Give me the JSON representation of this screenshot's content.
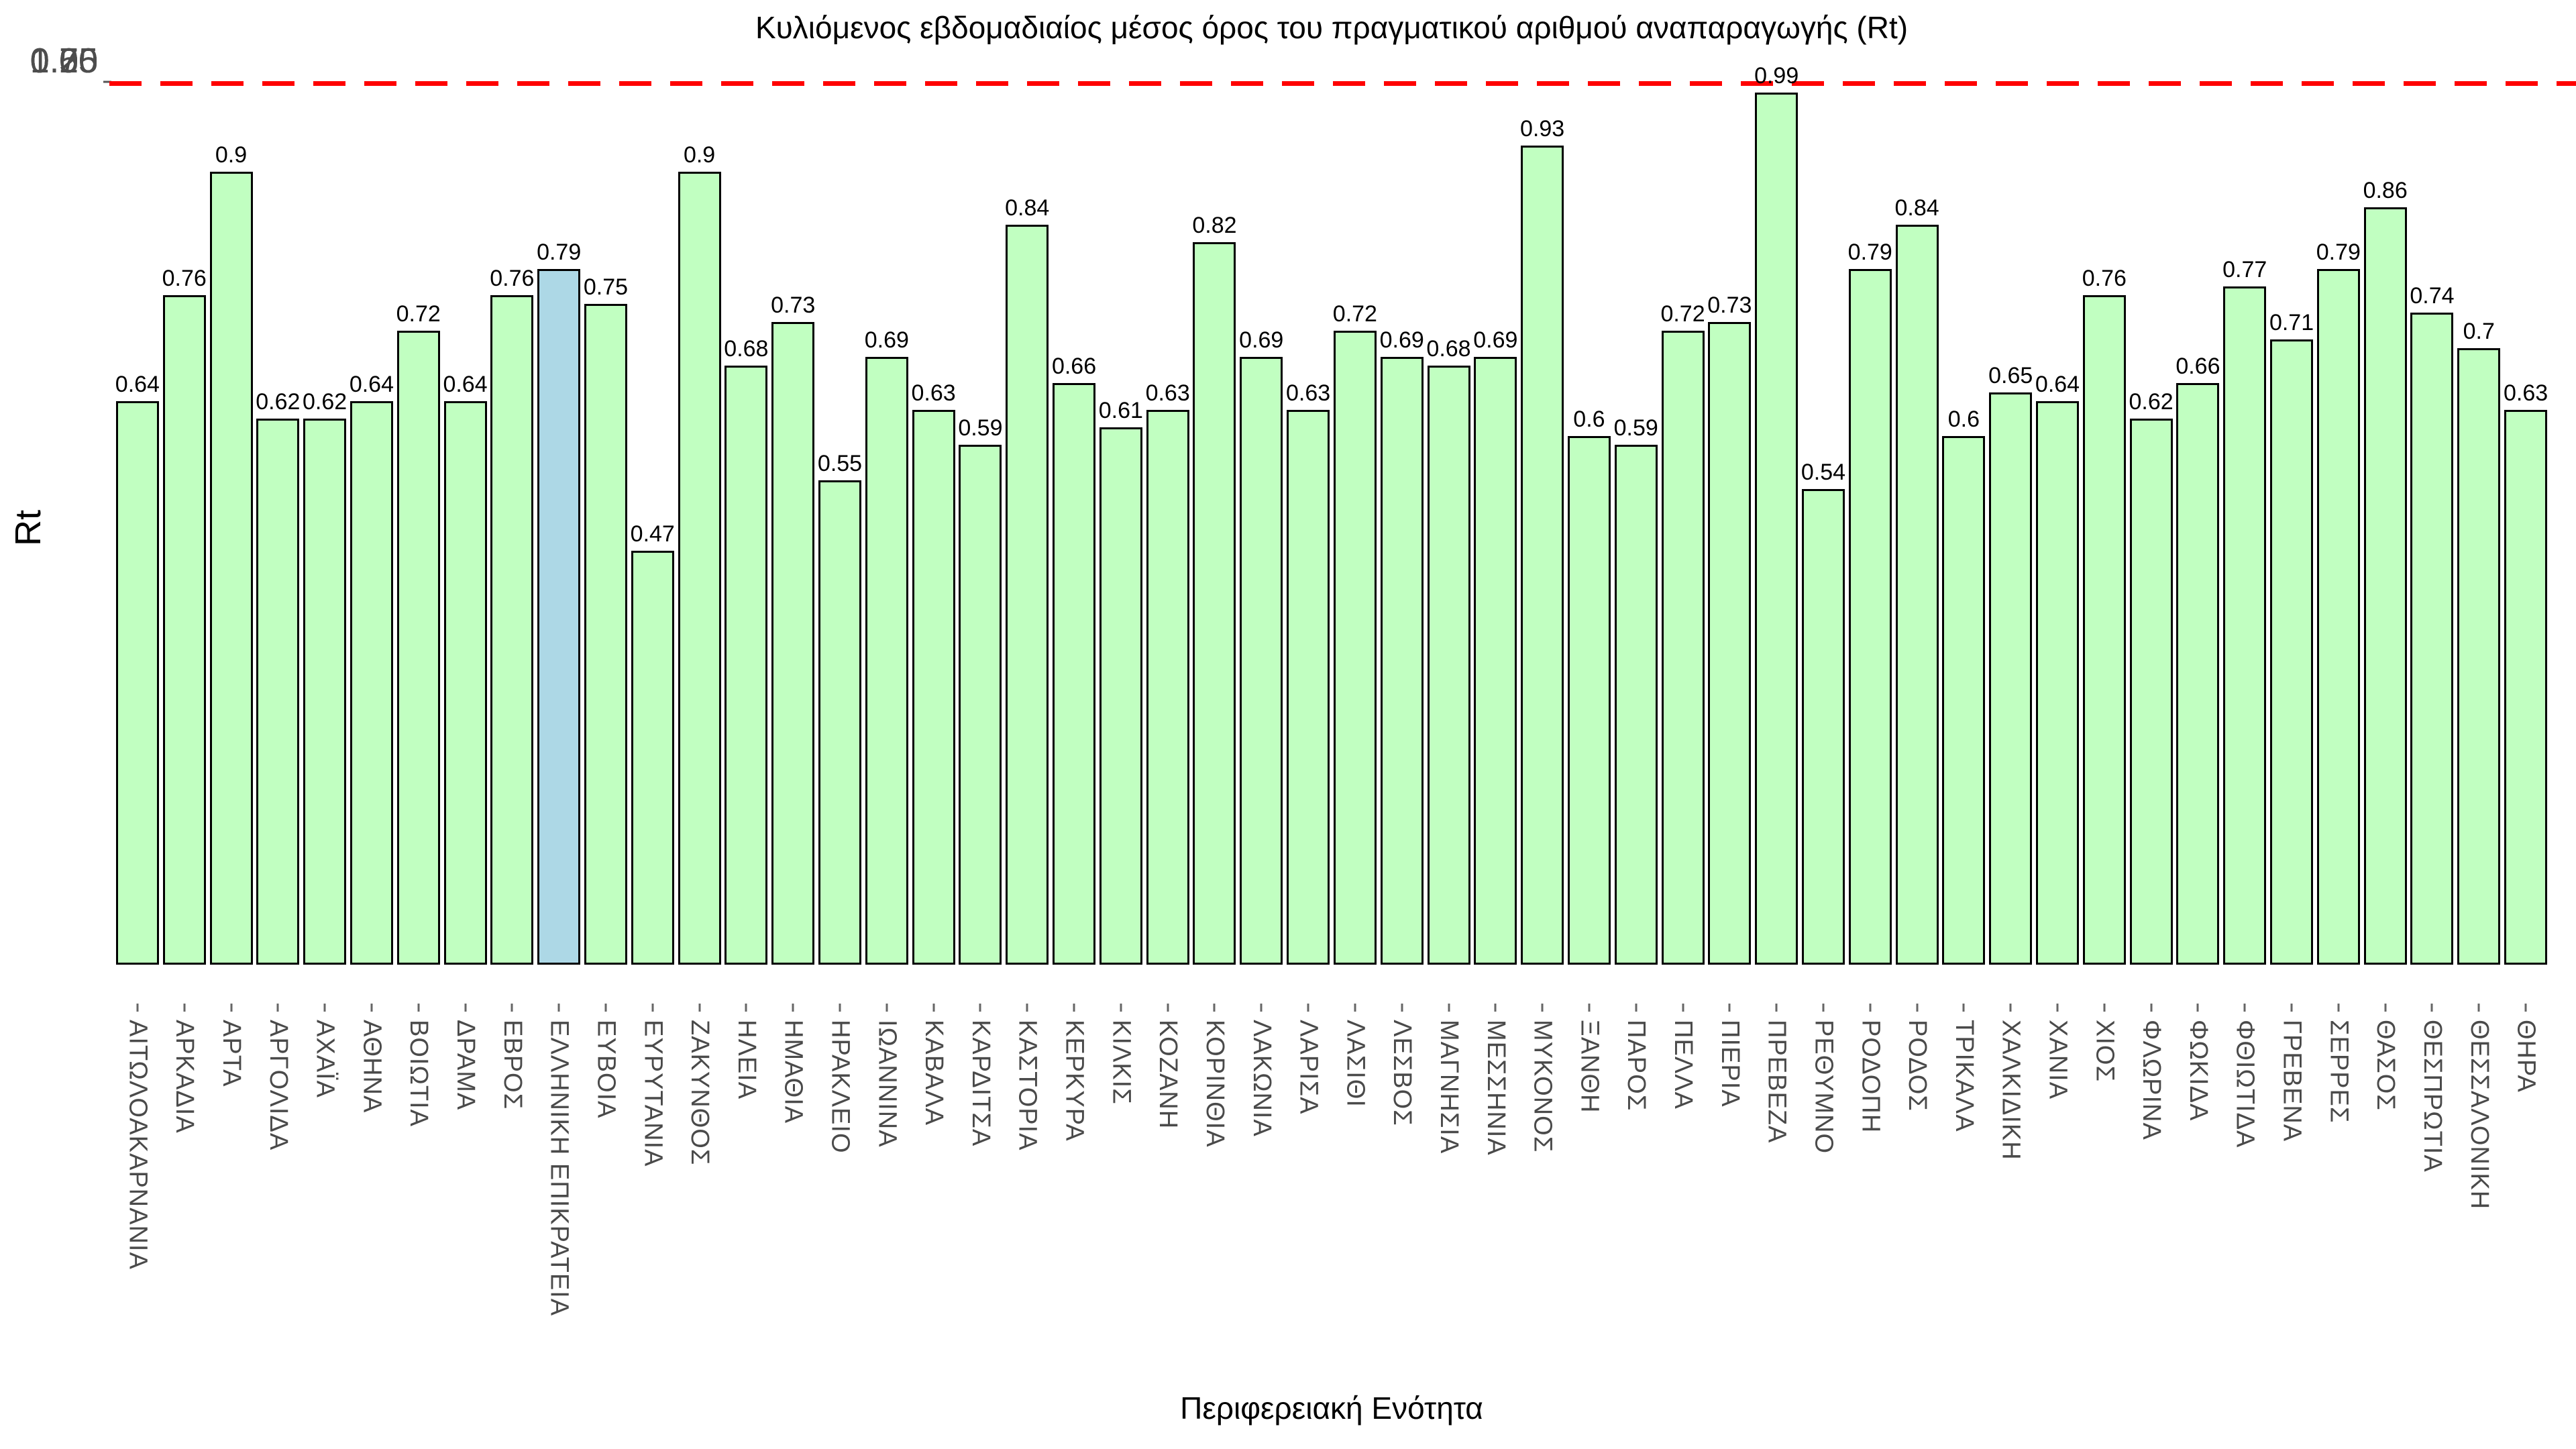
{
  "chart_data": {
    "type": "bar",
    "title": "Κυλιόμενος εβδομαδιαίος μέσος όρος του πραγματικού αριθμού αναπαραγωγής (Rt)",
    "xlabel": "Περιφερειακή Ενότητα",
    "ylabel": "Rt",
    "ylim": [
      0,
      1.05
    ],
    "yticks": [
      "0.00",
      "0.25",
      "0.50",
      "0.75",
      "1.00"
    ],
    "reference_line": 1.0,
    "grid": false,
    "legend": null,
    "colors": {
      "bar_fill": "#c1ffc1",
      "bar_border": "#000000",
      "highlight_fill": "#add8e6",
      "reference_line": "#ff0000",
      "tick_text": "#4a4a4a"
    },
    "highlight_category": "ΕΛΛΗΝΙΚΗ ΕΠΙΚΡΑΤΕΙΑ",
    "highlight_index": 9,
    "categories": [
      "ΑΙΤΩΛΟΑΚΑΡΝΑΝΙΑ",
      "ΑΡΚΑΔΙΑ",
      "ΑΡΤΑ",
      "ΑΡΓΟΛΙΔΑ",
      "ΑΧΑΪΑ",
      "ΑΘΗΝΑ",
      "ΒΟΙΩΤΙΑ",
      "ΔΡΑΜΑ",
      "ΕΒΡΟΣ",
      "ΕΛΛΗΝΙΚΗ ΕΠΙΚΡΑΤΕΙΑ",
      "ΕΥΒΟΙΑ",
      "ΕΥΡΥΤΑΝΙΑ",
      "ΖΑΚΥΝΘΟΣ",
      "ΗΛΕΙΑ",
      "ΗΜΑΘΙΑ",
      "ΗΡΑΚΛΕΙΟ",
      "ΙΩΑΝΝΙΝΑ",
      "ΚΑΒΑΛΑ",
      "ΚΑΡΔΙΤΣΑ",
      "ΚΑΣΤΟΡΙΑ",
      "ΚΕΡΚΥΡΑ",
      "ΚΙΛΚΙΣ",
      "ΚΟΖΑΝΗ",
      "ΚΟΡΙΝΘΙΑ",
      "ΛΑΚΩΝΙΑ",
      "ΛΑΡΙΣΑ",
      "ΛΑΣΙΘΙ",
      "ΛΕΣΒΟΣ",
      "ΜΑΓΝΗΣΙΑ",
      "ΜΕΣΣΗΝΙΑ",
      "ΜΥΚΟΝΟΣ",
      "ΞΑΝΘΗ",
      "ΠΑΡΟΣ",
      "ΠΕΛΛΑ",
      "ΠΙΕΡΙΑ",
      "ΠΡΕΒΕΖΑ",
      "ΡΕΘΥΜΝΟ",
      "ΡΟΔΟΠΗ",
      "ΡΟΔΟΣ",
      "ΤΡΙΚΑΛΑ",
      "ΧΑΛΚΙΔΙΚΗ",
      "ΧΑΝΙΑ",
      "ΧΙΟΣ",
      "ΦΛΩΡΙΝΑ",
      "ΦΩΚΙΔΑ",
      "ΦΘΙΩΤΙΔΑ",
      "ΓΡΕΒΕΝΑ",
      "ΣΕΡΡΕΣ",
      "ΘΑΣΟΣ",
      "ΘΕΣΠΡΩΤΙΑ",
      "ΘΕΣΣΑΛΟΝΙΚΗ",
      "ΘΗΡΑ"
    ],
    "values": [
      0.64,
      0.76,
      0.9,
      0.62,
      0.62,
      0.64,
      0.72,
      0.64,
      0.76,
      0.79,
      0.75,
      0.47,
      0.9,
      0.68,
      0.73,
      0.55,
      0.69,
      0.63,
      0.59,
      0.84,
      0.66,
      0.61,
      0.63,
      0.82,
      0.69,
      0.63,
      0.72,
      0.69,
      0.68,
      0.69,
      0.93,
      0.6,
      0.59,
      0.72,
      0.73,
      0.99,
      0.54,
      0.79,
      0.84,
      0.6,
      0.65,
      0.64,
      0.76,
      0.62,
      0.66,
      0.77,
      0.71,
      0.79,
      0.86,
      0.74,
      0.7,
      0.63
    ]
  }
}
